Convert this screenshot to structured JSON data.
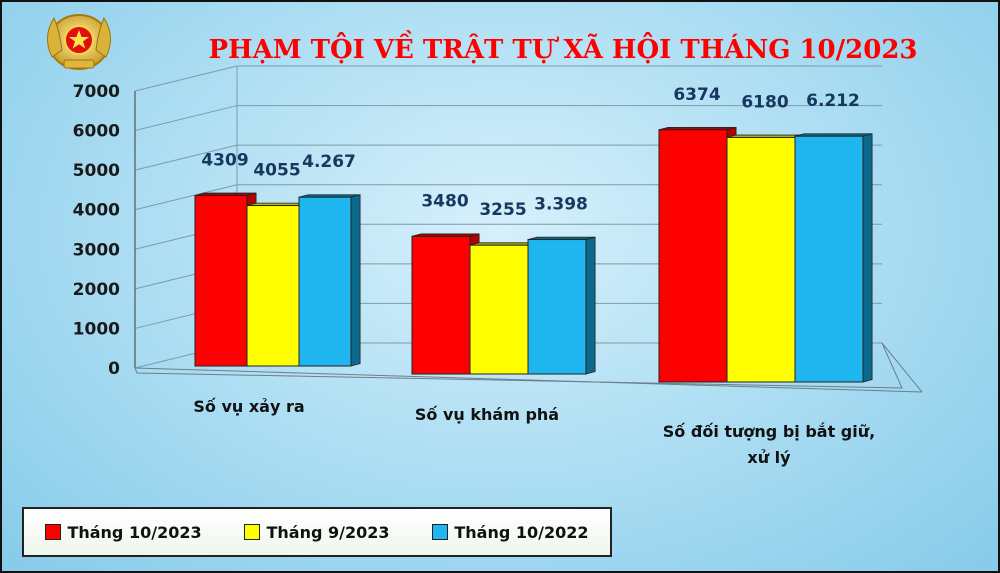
{
  "colors": {
    "series": [
      "#ff0000",
      "#ffff00",
      "#1fb6ef"
    ],
    "series_dark": [
      "#b30000",
      "#b8b800",
      "#0b6a8c"
    ],
    "title": "#ff0000"
  },
  "logo": {
    "icon": "police-emblem-icon"
  },
  "chart_data": {
    "type": "bar",
    "title": "PHẠM TỘI VỀ TRẬT TỰ XÃ HỘI THÁNG 10/2023",
    "categories": [
      [
        "Số vụ xảy ra"
      ],
      [
        "Số vụ khám phá"
      ],
      [
        "Số đối tượng bị bắt giữ,",
        "xử lý"
      ]
    ],
    "series": [
      {
        "name": "Tháng 10/2023",
        "values": [
          4309,
          3480,
          6374
        ],
        "labels": [
          "4309",
          "3480",
          "6374"
        ]
      },
      {
        "name": "Tháng 9/2023",
        "values": [
          4055,
          3255,
          6180
        ],
        "labels": [
          "4055",
          "3255",
          "6180"
        ]
      },
      {
        "name": "Tháng 10/2022",
        "values": [
          4267,
          3398,
          6212
        ],
        "labels": [
          "4.267",
          "3.398",
          "6.212"
        ]
      }
    ],
    "yticks": [
      "0",
      "1000",
      "2000",
      "3000",
      "4000",
      "5000",
      "6000",
      "7000"
    ],
    "ylim": [
      0,
      7000
    ],
    "grid": true,
    "legend_position": "bottom-left"
  }
}
